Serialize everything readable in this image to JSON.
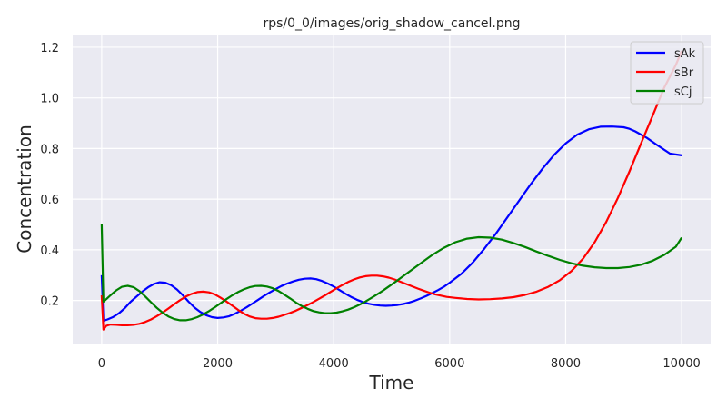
{
  "chart_data": {
    "type": "line",
    "title": "rps/0_0/images/orig_shadow_cancel.png",
    "xlabel": "Time",
    "ylabel": "Concentration",
    "xlim": [
      -500,
      10500
    ],
    "ylim": [
      0.03,
      1.25
    ],
    "xticks": [
      0,
      2000,
      4000,
      6000,
      8000,
      10000
    ],
    "yticks": [
      0.2,
      0.4,
      0.6,
      0.8,
      1.0,
      1.2
    ],
    "xtick_labels": [
      "0",
      "2000",
      "4000",
      "6000",
      "8000",
      "10000"
    ],
    "ytick_labels": [
      "0.2",
      "0.4",
      "0.6",
      "0.8",
      "1.0",
      "1.2"
    ],
    "grid": true,
    "background": "#eaeaf2",
    "legend_position": "top-right",
    "series": [
      {
        "name": "sAk",
        "color": "#0000ff",
        "x": [
          0,
          30,
          100,
          200,
          300,
          400,
          500,
          600,
          700,
          800,
          900,
          1000,
          1100,
          1200,
          1300,
          1400,
          1500,
          1600,
          1700,
          1800,
          1900,
          2000,
          2100,
          2200,
          2300,
          2400,
          2500,
          2600,
          2700,
          2800,
          2900,
          3000,
          3100,
          3200,
          3300,
          3400,
          3500,
          3600,
          3700,
          3800,
          3900,
          4000,
          4100,
          4200,
          4300,
          4400,
          4500,
          4600,
          4700,
          4800,
          4900,
          5000,
          5100,
          5200,
          5300,
          5400,
          5500,
          5600,
          5700,
          5800,
          5900,
          6000,
          6200,
          6400,
          6600,
          6800,
          7000,
          7200,
          7400,
          7600,
          7800,
          8000,
          8200,
          8400,
          8600,
          8800,
          9000,
          9100,
          9200,
          9400,
          9600,
          9800,
          10000
        ],
        "y": [
          0.3,
          0.12,
          0.125,
          0.135,
          0.15,
          0.17,
          0.195,
          0.215,
          0.235,
          0.252,
          0.265,
          0.272,
          0.27,
          0.26,
          0.243,
          0.22,
          0.195,
          0.172,
          0.155,
          0.142,
          0.134,
          0.131,
          0.133,
          0.138,
          0.148,
          0.16,
          0.173,
          0.188,
          0.203,
          0.218,
          0.232,
          0.245,
          0.257,
          0.267,
          0.275,
          0.282,
          0.286,
          0.287,
          0.284,
          0.277,
          0.267,
          0.255,
          0.241,
          0.227,
          0.214,
          0.203,
          0.194,
          0.187,
          0.183,
          0.18,
          0.179,
          0.18,
          0.182,
          0.186,
          0.192,
          0.199,
          0.208,
          0.218,
          0.229,
          0.241,
          0.254,
          0.27,
          0.305,
          0.35,
          0.405,
          0.465,
          0.53,
          0.595,
          0.66,
          0.72,
          0.775,
          0.82,
          0.855,
          0.876,
          0.886,
          0.887,
          0.884,
          0.878,
          0.868,
          0.842,
          0.81,
          0.78,
          0.773
        ]
      },
      {
        "name": "sBr",
        "color": "#ff0000",
        "x": [
          0,
          30,
          80,
          150,
          250,
          350,
          450,
          550,
          650,
          750,
          850,
          950,
          1050,
          1150,
          1250,
          1350,
          1450,
          1550,
          1650,
          1750,
          1850,
          1950,
          2050,
          2150,
          2250,
          2350,
          2450,
          2550,
          2650,
          2750,
          2850,
          2950,
          3050,
          3150,
          3250,
          3350,
          3450,
          3550,
          3650,
          3750,
          3850,
          3950,
          4050,
          4150,
          4250,
          4350,
          4450,
          4550,
          4650,
          4750,
          4850,
          4950,
          5050,
          5150,
          5250,
          5350,
          5450,
          5550,
          5650,
          5750,
          5850,
          5950,
          6100,
          6300,
          6500,
          6700,
          6900,
          7100,
          7300,
          7500,
          7700,
          7900,
          8100,
          8300,
          8500,
          8700,
          8900,
          9100,
          9300,
          9500,
          9700,
          9900,
          10000
        ],
        "y": [
          0.22,
          0.085,
          0.1,
          0.105,
          0.104,
          0.102,
          0.102,
          0.104,
          0.108,
          0.115,
          0.125,
          0.138,
          0.152,
          0.168,
          0.185,
          0.201,
          0.215,
          0.226,
          0.233,
          0.235,
          0.232,
          0.224,
          0.211,
          0.196,
          0.18,
          0.163,
          0.148,
          0.137,
          0.13,
          0.128,
          0.128,
          0.131,
          0.136,
          0.143,
          0.151,
          0.16,
          0.171,
          0.182,
          0.194,
          0.207,
          0.22,
          0.234,
          0.248,
          0.261,
          0.273,
          0.283,
          0.291,
          0.296,
          0.298,
          0.298,
          0.295,
          0.29,
          0.283,
          0.274,
          0.265,
          0.256,
          0.247,
          0.239,
          0.231,
          0.224,
          0.219,
          0.214,
          0.21,
          0.206,
          0.204,
          0.205,
          0.208,
          0.213,
          0.222,
          0.235,
          0.254,
          0.28,
          0.316,
          0.365,
          0.43,
          0.51,
          0.605,
          0.71,
          0.82,
          0.93,
          1.04,
          1.13,
          1.185
        ]
      },
      {
        "name": "sCj",
        "color": "#008000",
        "x": [
          0,
          30,
          80,
          150,
          250,
          350,
          450,
          550,
          650,
          750,
          850,
          950,
          1050,
          1150,
          1250,
          1350,
          1450,
          1550,
          1650,
          1750,
          1850,
          1950,
          2050,
          2150,
          2250,
          2350,
          2450,
          2550,
          2650,
          2750,
          2850,
          2950,
          3050,
          3150,
          3250,
          3350,
          3450,
          3550,
          3650,
          3750,
          3850,
          3950,
          4050,
          4150,
          4250,
          4350,
          4450,
          4550,
          4650,
          4750,
          4850,
          4950,
          5050,
          5150,
          5300,
          5500,
          5700,
          5900,
          6100,
          6300,
          6500,
          6700,
          6900,
          7100,
          7300,
          7500,
          7700,
          7900,
          8100,
          8300,
          8500,
          8700,
          8900,
          9100,
          9300,
          9500,
          9700,
          9900,
          10000
        ],
        "y": [
          0.5,
          0.195,
          0.205,
          0.22,
          0.24,
          0.254,
          0.258,
          0.252,
          0.237,
          0.216,
          0.193,
          0.171,
          0.152,
          0.137,
          0.127,
          0.122,
          0.122,
          0.126,
          0.134,
          0.145,
          0.158,
          0.173,
          0.189,
          0.205,
          0.22,
          0.233,
          0.244,
          0.252,
          0.257,
          0.258,
          0.255,
          0.248,
          0.237,
          0.223,
          0.208,
          0.192,
          0.178,
          0.167,
          0.158,
          0.153,
          0.15,
          0.15,
          0.152,
          0.157,
          0.164,
          0.173,
          0.184,
          0.196,
          0.21,
          0.224,
          0.239,
          0.255,
          0.271,
          0.288,
          0.313,
          0.347,
          0.38,
          0.408,
          0.43,
          0.444,
          0.45,
          0.448,
          0.44,
          0.427,
          0.411,
          0.393,
          0.376,
          0.36,
          0.347,
          0.337,
          0.331,
          0.328,
          0.328,
          0.332,
          0.341,
          0.357,
          0.38,
          0.412,
          0.448
        ]
      }
    ]
  }
}
